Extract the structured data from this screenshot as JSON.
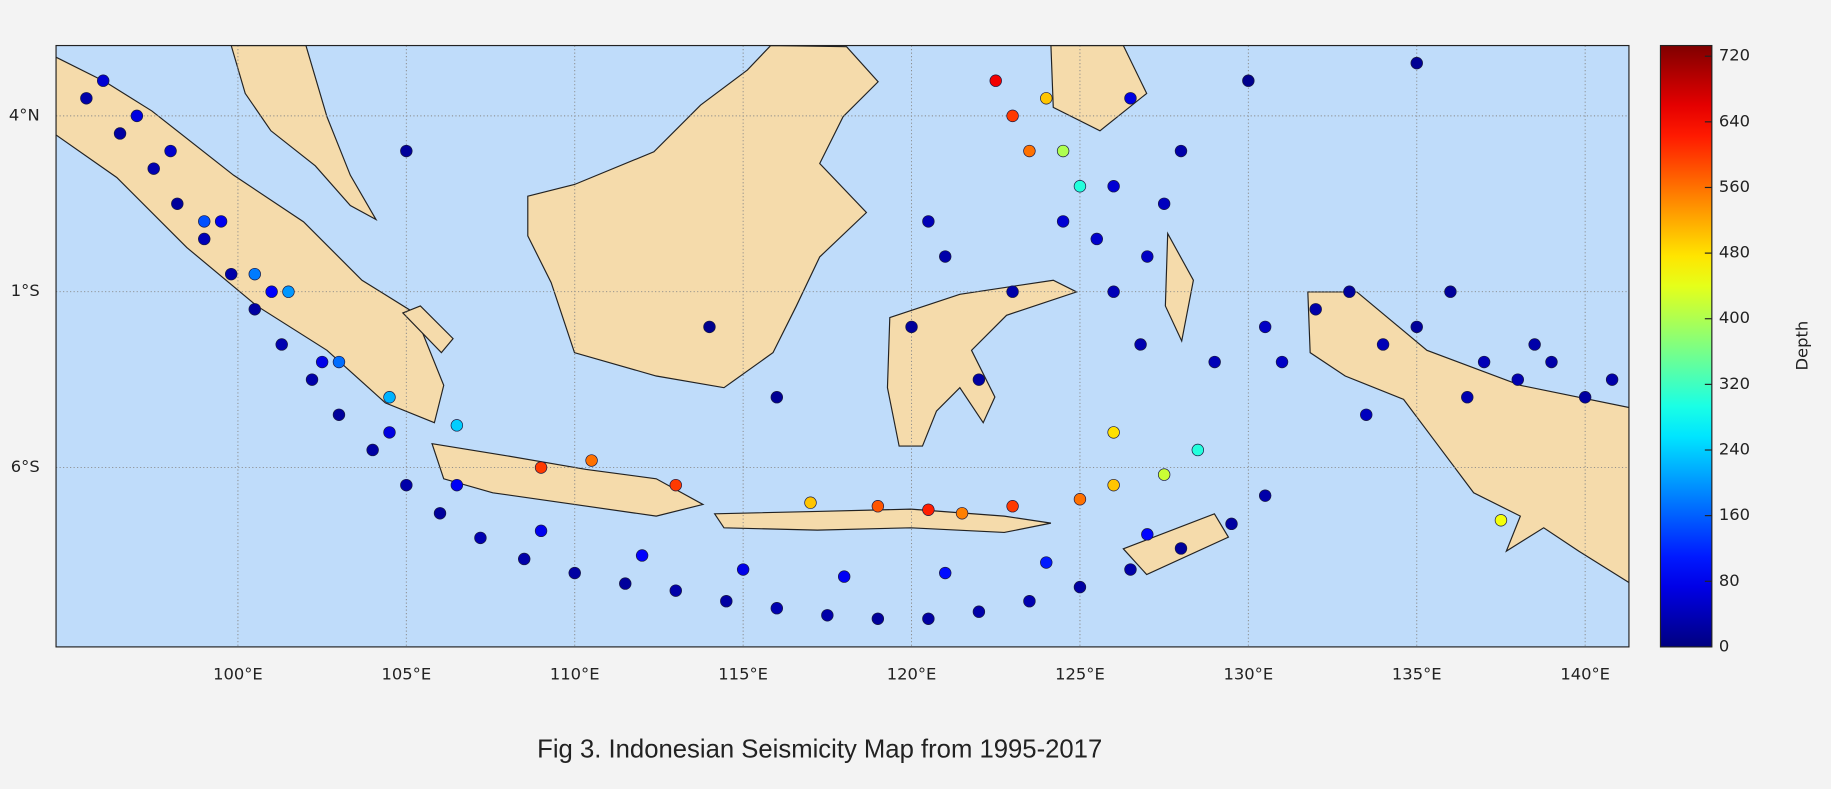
{
  "chart_data": {
    "type": "scatter",
    "caption": "Fig 3. Indonesian Seismicity Map from 1995-2017",
    "colorbar_label": "Depth",
    "colormap": "jet",
    "grid": true,
    "xlim": [
      94.6,
      141.3
    ],
    "ylim": [
      -11.1,
      6.0
    ],
    "clim": [
      0,
      733
    ],
    "xticks": [
      {
        "value": 100,
        "label": "100°E"
      },
      {
        "value": 105,
        "label": "105°E"
      },
      {
        "value": 110,
        "label": "110°E"
      },
      {
        "value": 115,
        "label": "115°E"
      },
      {
        "value": 120,
        "label": "120°E"
      },
      {
        "value": 125,
        "label": "125°E"
      },
      {
        "value": 130,
        "label": "130°E"
      },
      {
        "value": 135,
        "label": "135°E"
      },
      {
        "value": 140,
        "label": "140°E"
      }
    ],
    "yticks": [
      {
        "value": -6,
        "label": "6°S"
      },
      {
        "value": -1,
        "label": "1°S"
      },
      {
        "value": 4,
        "label": "4°N"
      }
    ],
    "cticks": [
      0,
      80,
      160,
      240,
      320,
      400,
      480,
      560,
      640,
      720
    ],
    "x": [
      95.5,
      96.5,
      97.5,
      98.2,
      99.0,
      99.8,
      100.5,
      101.3,
      102.2,
      103.0,
      104.0,
      105.0,
      106.0,
      107.2,
      108.5,
      110.0,
      111.5,
      113.0,
      114.5,
      116.0,
      117.5,
      119.0,
      120.5,
      122.0,
      123.5,
      125.0,
      126.5,
      128.0,
      129.5,
      130.5,
      96.0,
      97.0,
      98.0,
      99.5,
      101.0,
      102.5,
      104.5,
      106.5,
      109.0,
      112.0,
      115.0,
      118.0,
      121.0,
      124.0,
      127.0,
      126.0,
      127.0,
      126.0,
      128.0,
      126.5,
      127.5,
      125.5,
      126.8,
      129.0,
      130.5,
      120.0,
      121.0,
      123.0,
      122.0,
      120.5,
      124.5,
      131.0,
      132.0,
      133.0,
      134.0,
      135.0,
      136.0,
      137.0,
      138.0,
      139.0,
      140.0,
      140.8,
      133.5,
      136.5,
      138.5,
      99.0,
      100.5,
      101.5,
      103.0,
      104.5,
      106.5,
      109.0,
      110.5,
      113.0,
      117.0,
      119.0,
      120.5,
      121.5,
      123.0,
      125.0,
      126.0,
      127.5,
      128.5,
      126.0,
      122.5,
      123.0,
      123.5,
      124.0,
      124.5,
      125.0,
      130.0,
      135.0,
      105.0,
      114.0,
      116.0,
      137.5
    ],
    "y": [
      4.5,
      3.5,
      2.5,
      1.5,
      0.5,
      -0.5,
      -1.5,
      -2.5,
      -3.5,
      -4.5,
      -5.5,
      -6.5,
      -7.3,
      -8.0,
      -8.6,
      -9.0,
      -9.3,
      -9.5,
      -9.8,
      -10.0,
      -10.2,
      -10.3,
      -10.3,
      -10.1,
      -9.8,
      -9.4,
      -8.9,
      -8.3,
      -7.6,
      -6.8,
      5.0,
      4.0,
      3.0,
      1.0,
      -1.0,
      -3.0,
      -5.0,
      -6.5,
      -7.8,
      -8.5,
      -8.9,
      -9.1,
      -9.0,
      -8.7,
      -7.9,
      2.0,
      0.0,
      -1.0,
      3.0,
      4.5,
      1.5,
      0.5,
      -2.5,
      -3.0,
      -2.0,
      -2.0,
      0.0,
      -1.0,
      -3.5,
      1.0,
      1.0,
      -3.0,
      -1.5,
      -1.0,
      -2.5,
      -2.0,
      -1.0,
      -3.0,
      -3.5,
      -3.0,
      -4.0,
      -3.5,
      -4.5,
      -4.0,
      -2.5,
      1.0,
      -0.5,
      -1.0,
      -3.0,
      -4.0,
      -4.8,
      -6.0,
      -5.8,
      -6.5,
      -7.0,
      -7.1,
      -7.2,
      -7.3,
      -7.1,
      -6.9,
      -6.5,
      -6.2,
      -5.5,
      -5.0,
      5.0,
      4.0,
      3.0,
      4.5,
      3.0,
      2.0,
      5.0,
      5.5,
      3.0,
      -2.0,
      -4.0,
      -7.5
    ],
    "values": [
      30,
      25,
      35,
      20,
      40,
      30,
      25,
      35,
      30,
      20,
      25,
      30,
      20,
      35,
      30,
      25,
      20,
      30,
      25,
      35,
      30,
      20,
      25,
      30,
      35,
      25,
      30,
      20,
      25,
      30,
      60,
      70,
      55,
      80,
      90,
      75,
      70,
      85,
      80,
      90,
      75,
      85,
      100,
      110,
      95,
      60,
      50,
      40,
      30,
      70,
      45,
      55,
      35,
      40,
      50,
      20,
      30,
      30,
      25,
      40,
      60,
      50,
      30,
      20,
      40,
      20,
      20,
      40,
      35,
      30,
      25,
      30,
      45,
      35,
      30,
      150,
      180,
      200,
      170,
      220,
      240,
      600,
      560,
      600,
      500,
      580,
      620,
      550,
      600,
      560,
      500,
      420,
      300,
      480,
      650,
      600,
      560,
      500,
      400,
      300,
      10,
      15,
      20,
      10,
      15,
      450
    ]
  }
}
